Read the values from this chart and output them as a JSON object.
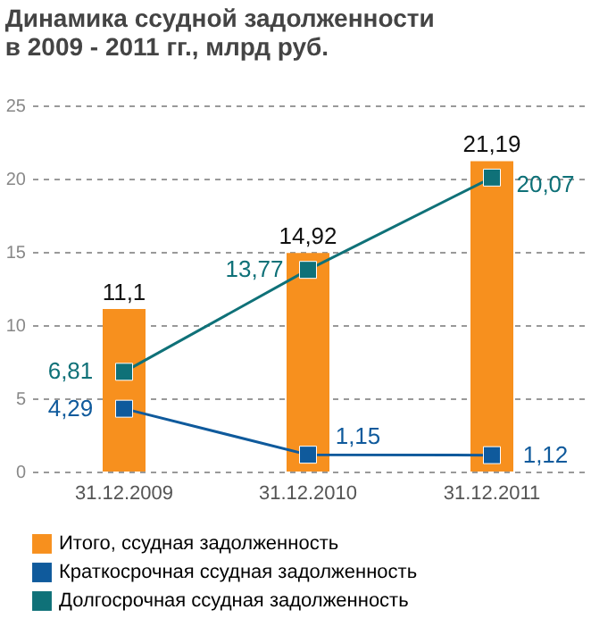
{
  "chart_data": {
    "type": "bar",
    "title": "Динамика ссудной задолженности в 2009 - 2011 гг., млрд руб.",
    "categories": [
      "31.12.2009",
      "31.12.2010",
      "31.12.2011"
    ],
    "series": [
      {
        "name": "Итого, ссудная задолженность",
        "color": "#f7901e",
        "values": [
          11.1,
          14.92,
          21.19
        ],
        "value_labels": [
          "11,1",
          "14,92",
          "21,19"
        ]
      },
      {
        "name": "Краткосрочная ссудная задолженность",
        "type": "line",
        "color": "#0f5a9c",
        "values": [
          4.29,
          1.15,
          1.12
        ],
        "value_labels": [
          "4,29",
          "1,15",
          "1,12"
        ]
      },
      {
        "name": "Долгосрочная ссудная задолженность",
        "type": "line",
        "color": "#0f7178",
        "values": [
          6.81,
          13.77,
          20.07
        ],
        "value_labels": [
          "6,81",
          "13,77",
          "20,07"
        ]
      }
    ],
    "ylim": [
      0,
      25
    ],
    "yticks": [
      0,
      5,
      10,
      15,
      20,
      25
    ],
    "grid": "y",
    "legend": "bottom",
    "marker": "square",
    "line_style": "solid"
  }
}
